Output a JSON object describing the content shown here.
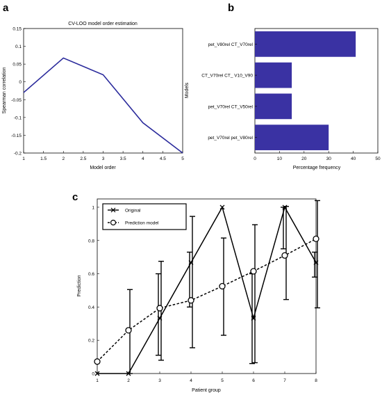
{
  "panels": {
    "a": "a",
    "b": "b",
    "c": "c"
  },
  "chart_data": [
    {
      "id": "a",
      "type": "line",
      "title": "CV-LOO model order estimation",
      "xlabel": "Model order",
      "ylabel": "Spearman correlation",
      "x": [
        1,
        2,
        3,
        4,
        5
      ],
      "y": [
        -0.03,
        0.067,
        0.02,
        -0.115,
        -0.2
      ],
      "xlim": [
        1,
        5
      ],
      "ylim": [
        -0.2,
        0.15
      ],
      "xticks": [
        "1",
        "1.5",
        "2",
        "2.5",
        "3",
        "3.5",
        "4",
        "4.5",
        "5"
      ],
      "yticks": [
        "0.15",
        "0.1",
        "0.05",
        "0",
        "-0.05",
        "-0.1",
        "-0.15",
        "-0.2"
      ],
      "color": "#2b2b9c",
      "grid": false
    },
    {
      "id": "b",
      "type": "bar",
      "orientation": "horizontal",
      "xlabel": "Percentage frequency",
      "ylabel": "Models",
      "categories": [
        "pet_V80rel CT_V70rel",
        "CT_V70rel CT_ V10_V90",
        "pet_V70rel CT_V50rel",
        "pet_V70rel pet_V80rel"
      ],
      "values": [
        41,
        15,
        15,
        30
      ],
      "xlim": [
        0,
        50
      ],
      "xticks": [
        "0",
        "10",
        "20",
        "30",
        "40",
        "50"
      ],
      "color": "#3a32a3",
      "grid": false
    },
    {
      "id": "c",
      "type": "line",
      "xlabel": "Patient group",
      "ylabel": "Prediction",
      "x": [
        1,
        2,
        3,
        4,
        5,
        6,
        7,
        8
      ],
      "xlim": [
        1,
        8
      ],
      "ylim": [
        0,
        1.05
      ],
      "xticks": [
        "1",
        "2",
        "3",
        "4",
        "5",
        "6",
        "7",
        "8"
      ],
      "yticks": [
        "0",
        "0.2",
        "0.4",
        "0.6",
        "0.8",
        "1"
      ],
      "legend": "top-left",
      "series": [
        {
          "name": "Original",
          "style": "solid",
          "marker": "x",
          "values": [
            0,
            0,
            0.333,
            0.667,
            1.0,
            0.333,
            1.0,
            0.667
          ],
          "error_low": [
            0,
            0,
            0.11,
            0.4,
            0,
            0.06,
            0.75,
            0.58
          ],
          "error_high": [
            0,
            0,
            0.6,
            0.73,
            0,
            0.6,
            1.0,
            0.73
          ]
        },
        {
          "name": "Prediction model",
          "style": "dashed",
          "marker": "o",
          "values": [
            0.072,
            0.26,
            0.393,
            0.44,
            0.525,
            0.615,
            0.71,
            0.81
          ],
          "error_low": [
            0.072,
            0.0,
            0.08,
            0.155,
            0.23,
            0.065,
            0.445,
            0.395
          ],
          "error_high": [
            0.072,
            0.505,
            0.675,
            0.945,
            0.815,
            0.895,
            1.005,
            1.04
          ]
        }
      ],
      "grid": false
    }
  ]
}
